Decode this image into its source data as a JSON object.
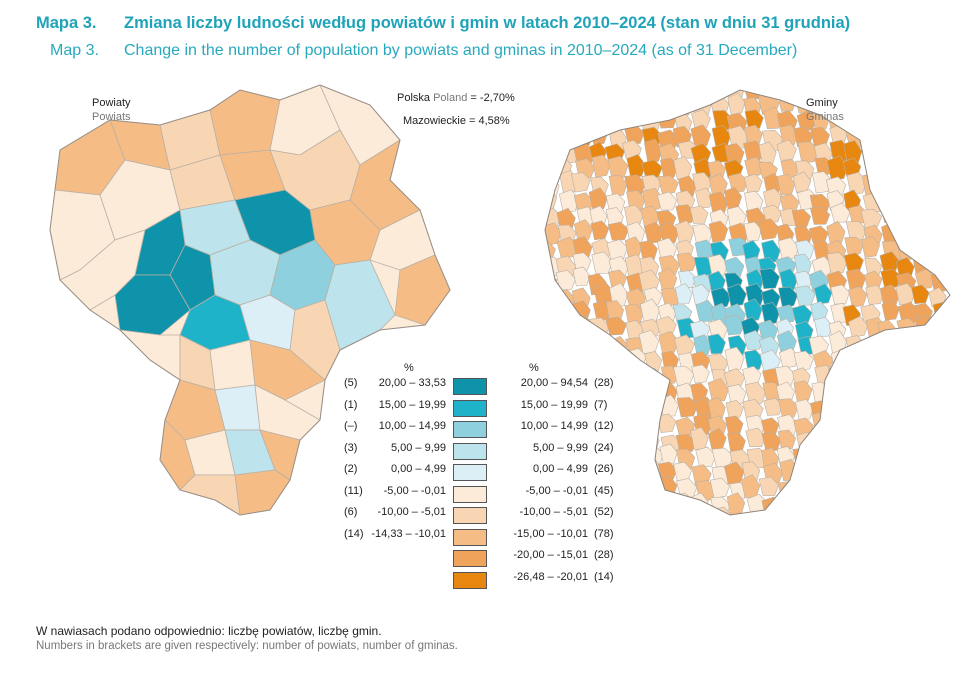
{
  "title": {
    "pl_number": "Mapa 3.",
    "pl_text": "Zmiana liczby ludności według powiatów i gmin w latach 2010–2024 (stan w dniu 31 grudnia)",
    "en_number": "Map 3.",
    "en_text": "Change in the number of population by powiats and gminas in 2010–2024 (as of 31 December)"
  },
  "left_map": {
    "label_pl": "Powiaty",
    "label_en": "Powiats"
  },
  "right_map": {
    "label_pl": "Gminy",
    "label_en": "Gminas"
  },
  "national": {
    "poland_pl": "Polska",
    "poland_en": "Poland",
    "poland_value": "= -2,70%",
    "mazowieckie": "Mazowieckie = 4,58%"
  },
  "legend": {
    "unit_left": "%",
    "unit_right": "%",
    "left": [
      {
        "count": "(5)",
        "range": "20,00 – 33,53"
      },
      {
        "count": "(1)",
        "range": "15,00 – 19,99"
      },
      {
        "count": "(–)",
        "range": "10,00 – 14,99"
      },
      {
        "count": "(3)",
        "range": "5,00 –   9,99"
      },
      {
        "count": "(2)",
        "range": "0,00 –   4,99"
      },
      {
        "count": "(11)",
        "range": "-5,00 – -0,01"
      },
      {
        "count": "(6)",
        "range": "-10,00 – -5,01"
      },
      {
        "count": "(14)",
        "range": "-14,33 – -10,01"
      }
    ],
    "right": [
      {
        "count": "(28)",
        "range": "20,00 – 94,54",
        "color": "#0f93aa"
      },
      {
        "count": "(7)",
        "range": "15,00 – 19,99",
        "color": "#1fb3c9"
      },
      {
        "count": "(12)",
        "range": "10,00 – 14,99",
        "color": "#8fd0df"
      },
      {
        "count": "(24)",
        "range": "5,00 –   9,99",
        "color": "#bde3ec"
      },
      {
        "count": "(26)",
        "range": "0,00 –   4,99",
        "color": "#dceff6"
      },
      {
        "count": "(45)",
        "range": "-5,00 – -0,01",
        "color": "#fdebd9"
      },
      {
        "count": "(52)",
        "range": "-10,00 – -5,01",
        "color": "#f9d6b3"
      },
      {
        "count": "(78)",
        "range": "-15,00 – -10,01",
        "color": "#f5bd85"
      },
      {
        "count": "(28)",
        "range": "-20,00 – -15,01",
        "color": "#f0a35a"
      },
      {
        "count": "(14)",
        "range": "-26,48 – -20,01",
        "color": "#e8870f"
      }
    ]
  },
  "footnote": {
    "pl": "W nawiasach podano odpowiednio: liczbę powiatów, liczbę gmin.",
    "en": "Numbers in brackets are given respectively: number of powiats, number of gminas."
  }
}
